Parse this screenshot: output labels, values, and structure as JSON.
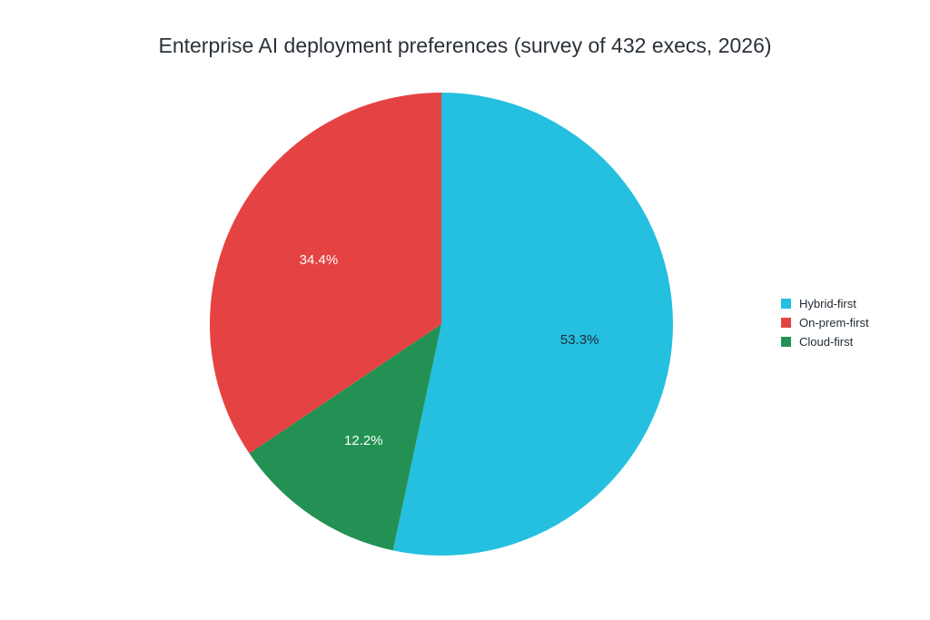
{
  "chart_data": {
    "type": "pie",
    "title": "Enterprise AI deployment preferences (survey of 432 execs, 2026)",
    "legend": "right",
    "start_angle_deg": 90,
    "direction": "clockwise",
    "slices": [
      {
        "label": "Hybrid-first",
        "value": 53.3,
        "display": "53.3%",
        "color": "#25BFE0",
        "label_color": "#1f2933"
      },
      {
        "label": "Cloud-first",
        "value": 12.2,
        "display": "12.2%",
        "color": "#239153",
        "label_color": "#ffffff"
      },
      {
        "label": "On-prem-first",
        "value": 34.4,
        "display": "34.4%",
        "color": "#E54343",
        "label_color": "#ffffff"
      }
    ],
    "legend_order": [
      "Hybrid-first",
      "On-prem-first",
      "Cloud-first"
    ]
  }
}
